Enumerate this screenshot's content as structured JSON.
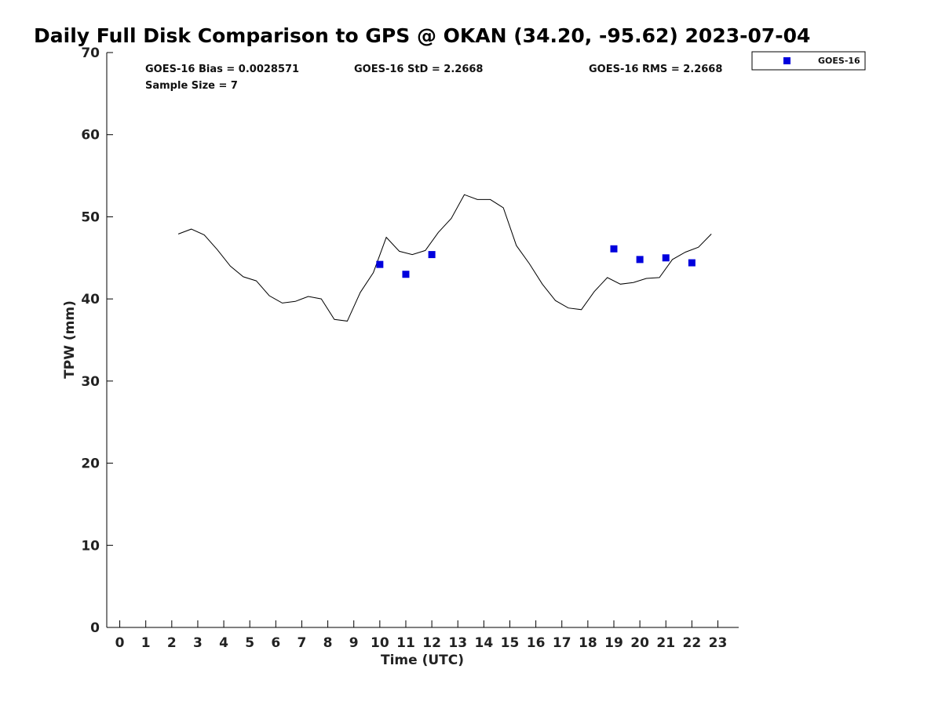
{
  "chart_data": {
    "type": "scatter",
    "title": "Daily Full Disk Comparison to GPS @ OKAN (34.20, -95.62) 2023-07-04",
    "xlabel": "Time (UTC)",
    "ylabel": "TPW (mm)",
    "xlim": [
      -0.5,
      23.8
    ],
    "ylim": [
      0,
      70
    ],
    "xticks": [
      0,
      1,
      2,
      3,
      4,
      5,
      6,
      7,
      8,
      9,
      10,
      11,
      12,
      13,
      14,
      15,
      16,
      17,
      18,
      19,
      20,
      21,
      22,
      23
    ],
    "yticks": [
      0,
      10,
      20,
      30,
      40,
      50,
      60,
      70
    ],
    "grid": false,
    "legend": {
      "position": "top-right",
      "entries": [
        "GOES-16"
      ]
    },
    "stats": {
      "bias": "GOES-16 Bias = 0.0028571",
      "std": "GOES-16 StD = 2.2668",
      "rms": "GOES-16 RMS = 2.2668",
      "sample_size": "Sample Size = 7"
    },
    "series": [
      {
        "type": "line",
        "color": "#000000",
        "x": [
          2.25,
          2.75,
          3.25,
          3.75,
          4.25,
          4.75,
          5.25,
          5.75,
          6.25,
          6.75,
          7.25,
          7.75,
          8.25,
          8.75,
          9.25,
          9.75,
          10.25,
          10.75,
          11.25,
          11.75,
          12.25,
          12.75,
          13.25,
          13.75,
          14.25,
          14.75,
          15.25,
          15.75,
          16.25,
          16.75,
          17.25,
          17.75,
          18.25,
          18.75,
          19.25,
          19.75,
          20.25,
          20.75,
          21.25,
          21.75,
          22.25,
          22.75
        ],
        "y": [
          47.9,
          48.5,
          47.8,
          46.0,
          44.0,
          42.7,
          42.2,
          40.4,
          39.5,
          39.7,
          40.3,
          40.0,
          37.5,
          37.3,
          40.8,
          43.2,
          47.5,
          45.8,
          45.4,
          45.9,
          48.1,
          49.8,
          52.7,
          52.1,
          52.1,
          51.1,
          46.5,
          44.3,
          41.8,
          39.8,
          38.9,
          38.7,
          40.9,
          42.6,
          41.8,
          42.0,
          42.5,
          42.6,
          44.8,
          45.7,
          46.3,
          47.9
        ]
      },
      {
        "name": "GOES-16",
        "type": "scatter",
        "color": "#0000dd",
        "x": [
          10,
          11,
          12,
          19,
          20,
          21,
          22
        ],
        "y": [
          44.2,
          43.0,
          45.4,
          46.1,
          44.8,
          45.0,
          44.4
        ]
      }
    ]
  }
}
